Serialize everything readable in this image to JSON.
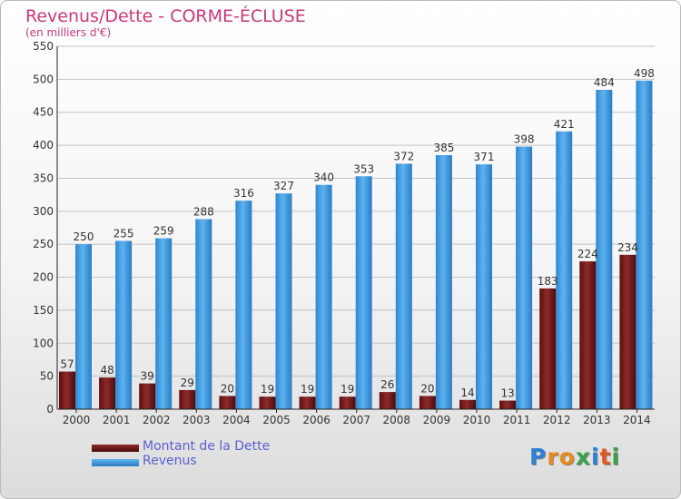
{
  "chart_data": {
    "type": "bar",
    "title": "Revenus/Dette - CORME-ÉCLUSE",
    "subtitle": "(en milliers d'€)",
    "categories": [
      "2000",
      "2001",
      "2002",
      "2003",
      "2004",
      "2005",
      "2006",
      "2007",
      "2008",
      "2009",
      "2010",
      "2011",
      "2012",
      "2013",
      "2014"
    ],
    "series": [
      {
        "name": "Montant de la Dette",
        "color": "#7a1a1a",
        "values": [
          57,
          48,
          39,
          29,
          20,
          19,
          19,
          19,
          26,
          20,
          14,
          13,
          183,
          224,
          234
        ]
      },
      {
        "name": "Revenus",
        "color": "#4aa3e6",
        "values": [
          250,
          255,
          259,
          288,
          316,
          327,
          340,
          353,
          372,
          385,
          371,
          398,
          421,
          484,
          498
        ]
      }
    ],
    "ylim": [
      0,
      550
    ],
    "yticks": [
      0,
      50,
      100,
      150,
      200,
      250,
      300,
      350,
      400,
      450,
      500,
      550
    ],
    "grid": true,
    "legend": "bottom-left"
  },
  "logo": {
    "letters": [
      "P",
      "r",
      "o",
      "x",
      "i",
      "t",
      "i"
    ],
    "colors": [
      "#2f7fd6",
      "#e58a1f",
      "#e58a1f",
      "#3aa04a",
      "#2f7fd6",
      "#e05a1f",
      "#3aa04a"
    ]
  }
}
